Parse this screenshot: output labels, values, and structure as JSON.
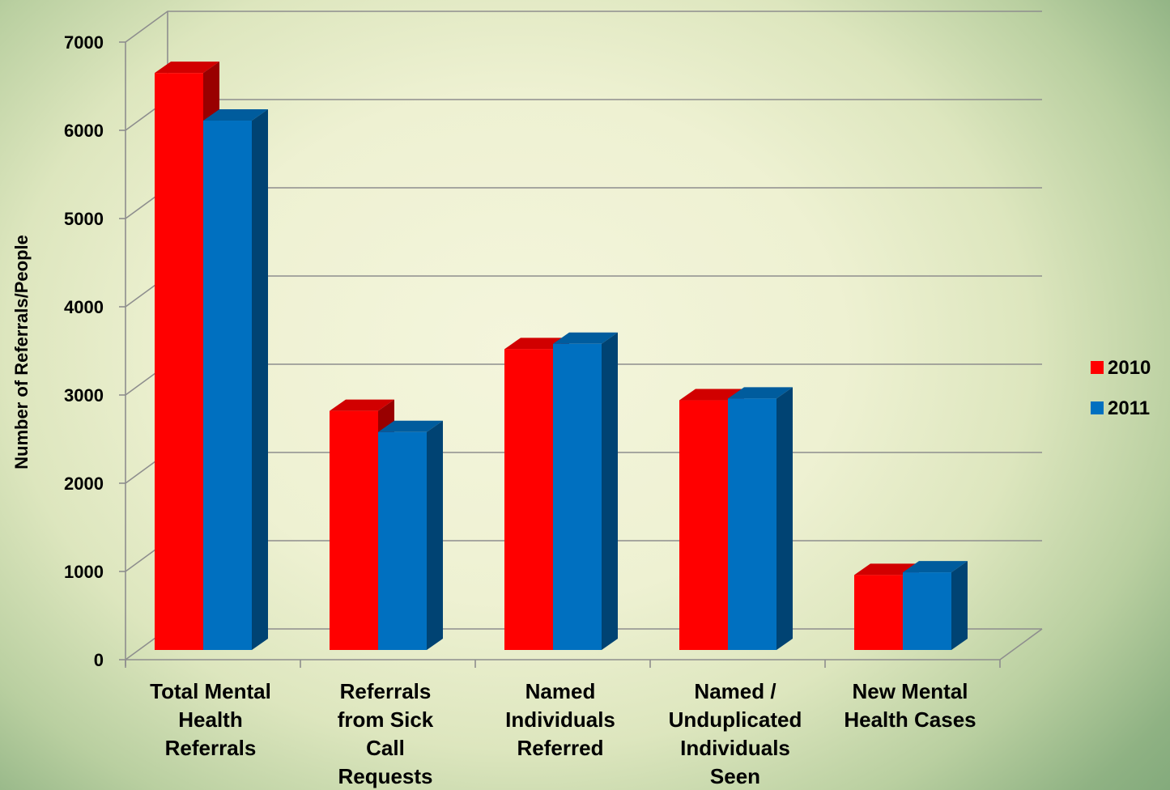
{
  "chart_data": {
    "type": "bar",
    "title": "",
    "ylabel": "Number of Referrals/People",
    "xlabel": "",
    "ylim": [
      0,
      7000
    ],
    "yticks": [
      0,
      1000,
      2000,
      3000,
      4000,
      5000,
      6000,
      7000
    ],
    "grid": true,
    "legend_position": "right",
    "categories": [
      [
        "Total Mental",
        "Health",
        "Referrals"
      ],
      [
        "Referrals",
        "from Sick",
        "Call",
        "Requests"
      ],
      [
        "Named",
        "Individuals",
        "Referred"
      ],
      [
        "Named /",
        "Unduplicated",
        "Individuals",
        "Seen"
      ],
      [
        "New Mental",
        "Health Cases"
      ]
    ],
    "series": [
      {
        "name": "2010",
        "color": "#ff0000",
        "values": [
          6650,
          2820,
          3520,
          2940,
          960
        ]
      },
      {
        "name": "2011",
        "color": "#0070c0",
        "values": [
          6110,
          2580,
          3580,
          2960,
          990
        ]
      }
    ]
  }
}
